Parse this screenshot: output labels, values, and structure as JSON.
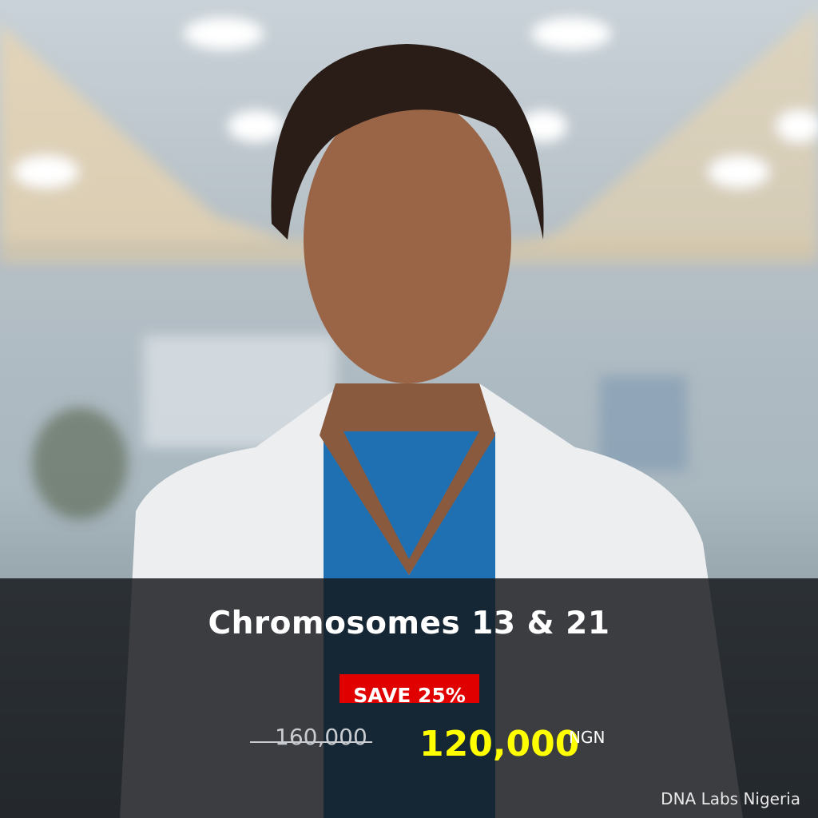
{
  "product": {
    "title": "Chromosomes 13 & 21",
    "badge": "SAVE 25%",
    "old_price": "160,000",
    "new_price": "120,000",
    "currency": "NGN"
  },
  "coat_logo_text": "DNA LABS NIGERIA",
  "brand": "DNA Labs Nigeria",
  "colors": {
    "badge": "#e00000",
    "new_price": "#ffff00",
    "band": "#14161a"
  }
}
